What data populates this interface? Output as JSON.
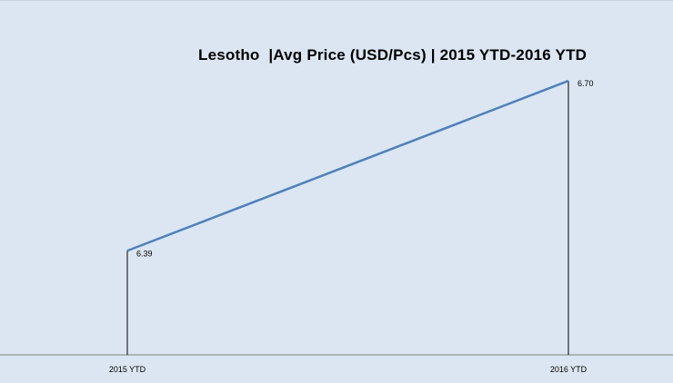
{
  "chart_data": {
    "type": "line",
    "title": "Lesotho  |Avg Price (USD/Pcs) | 2015 YTD-2016 YTD",
    "categories": [
      "2015 YTD",
      "2016 YTD"
    ],
    "series": [
      {
        "values": [
          6.39,
          6.7
        ],
        "data_labels": [
          "6.39",
          "6.70"
        ],
        "color": "#4f81bd"
      }
    ],
    "ylim": [
      6.2,
      6.72
    ],
    "grid": false,
    "legend": "none",
    "drop_lines": true,
    "background_color": "#dce6f2",
    "axis_color": "#808080"
  }
}
